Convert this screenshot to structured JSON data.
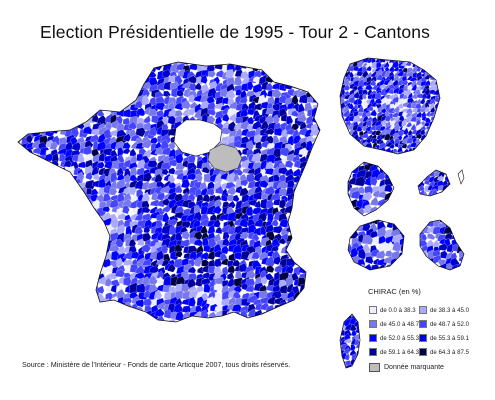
{
  "title": "Election Présidentielle de 1995 - Tour 2 - Cantons",
  "source": "Source : Ministère de l'Intérieur - Fonds de carte Articque 2007, tous droits réservés.",
  "legend": {
    "title": "CHIRAC (en %)",
    "classes": [
      {
        "label": "de 0.0 à 38.3",
        "color": "#eeeeff"
      },
      {
        "label": "de 38.3 à 45.0",
        "color": "#aaaaff"
      },
      {
        "label": "de 45.0 à 48.7",
        "color": "#7777ee"
      },
      {
        "label": "de 48.7 à 52.0",
        "color": "#4444ff"
      },
      {
        "label": "de 52.0 à 55.3",
        "color": "#0000ff"
      },
      {
        "label": "de 55.3 à 59.1",
        "color": "#0000cc"
      },
      {
        "label": "de 59.1 à 64.3",
        "color": "#000099"
      },
      {
        "label": "de 64.3 à 87.5",
        "color": "#000044"
      }
    ],
    "special": {
      "label": "Donnée marquante",
      "color": "#bdbdbd"
    }
  },
  "palette": [
    "#eeeeff",
    "#aaaaff",
    "#7777ee",
    "#4444ff",
    "#0000ff",
    "#0000cc",
    "#000099",
    "#000044"
  ]
}
